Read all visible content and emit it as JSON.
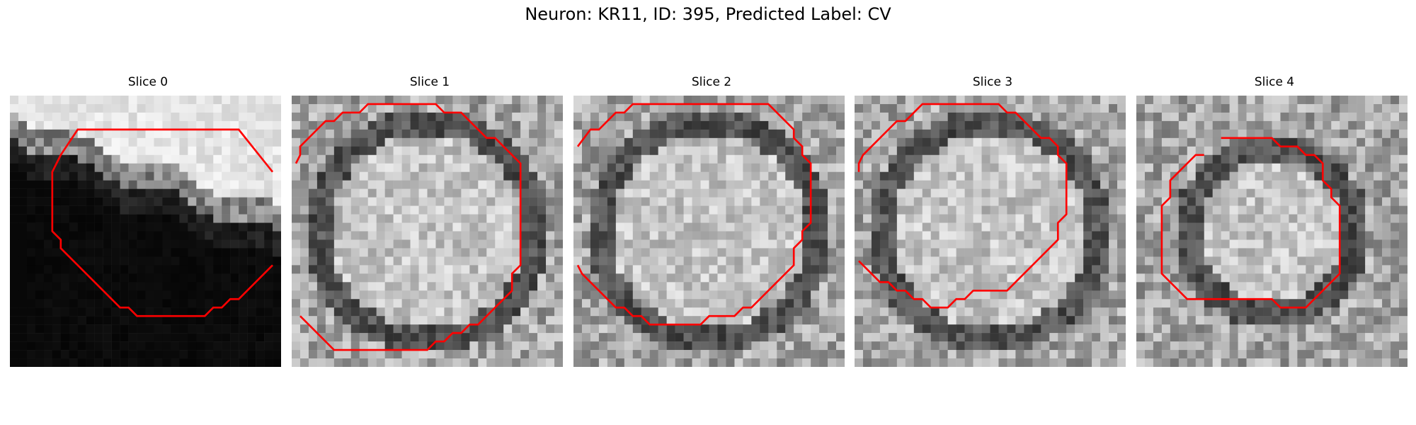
{
  "figure": {
    "title": "Neuron: KR11, ID: 395, Predicted Label: CV",
    "contour_color": "#ff0000"
  },
  "panels": [
    {
      "title": "Slice 0",
      "scene": "dark-lower"
    },
    {
      "title": "Slice 1",
      "scene": "bright-blob-dark-ring"
    },
    {
      "title": "Slice 2",
      "scene": "bright-blob-dark-ring"
    },
    {
      "title": "Slice 3",
      "scene": "bright-blob-dark-ring"
    },
    {
      "title": "Slice 4",
      "scene": "bright-blob-dark-ring"
    }
  ]
}
